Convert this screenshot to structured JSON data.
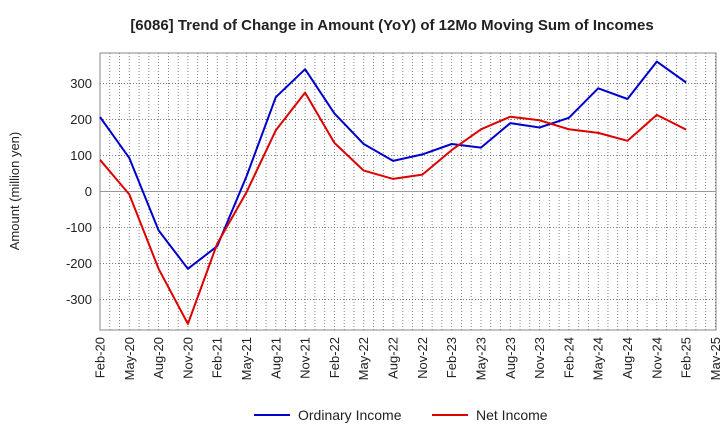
{
  "chart_data": {
    "type": "line",
    "title": "[6086]  Trend of Change in Amount (YoY) of 12Mo Moving Sum of Incomes",
    "ylabel": "Amount (million yen)",
    "xlabel": "",
    "ylim": [
      -385,
      385
    ],
    "yticks": [
      -300,
      -200,
      -100,
      0,
      100,
      200,
      300
    ],
    "grid": true,
    "legend_position": "bottom-center",
    "x_tick_labels": [
      "Feb-20",
      "May-20",
      "Aug-20",
      "Nov-20",
      "Feb-21",
      "May-21",
      "Aug-21",
      "Nov-21",
      "Feb-22",
      "May-22",
      "Aug-22",
      "Nov-22",
      "Feb-23",
      "May-23",
      "Aug-23",
      "Nov-23",
      "Feb-24",
      "May-24",
      "Aug-24",
      "Nov-24",
      "Feb-25",
      "May-25"
    ],
    "x": [
      "Feb-20",
      "May-20",
      "Aug-20",
      "Nov-20",
      "Feb-21",
      "May-21",
      "Aug-21",
      "Nov-21",
      "Feb-22",
      "May-22",
      "Aug-22",
      "Nov-22",
      "Feb-23",
      "May-23",
      "Aug-23",
      "Nov-23",
      "Feb-24",
      "May-24",
      "Aug-24",
      "Nov-24",
      "Feb-25"
    ],
    "series": [
      {
        "name": "Ordinary Income",
        "color": "#0000cc",
        "values": [
          207,
          93,
          -108,
          -215,
          -152,
          42,
          262,
          340,
          217,
          132,
          85,
          103,
          132,
          122,
          190,
          178,
          205,
          287,
          257,
          361,
          303
        ]
      },
      {
        "name": "Net Income",
        "color": "#dd0000",
        "values": [
          88,
          -8,
          -215,
          -368,
          -145,
          -2,
          170,
          275,
          135,
          58,
          35,
          47,
          115,
          173,
          208,
          198,
          173,
          163,
          141,
          213,
          172
        ]
      }
    ]
  }
}
